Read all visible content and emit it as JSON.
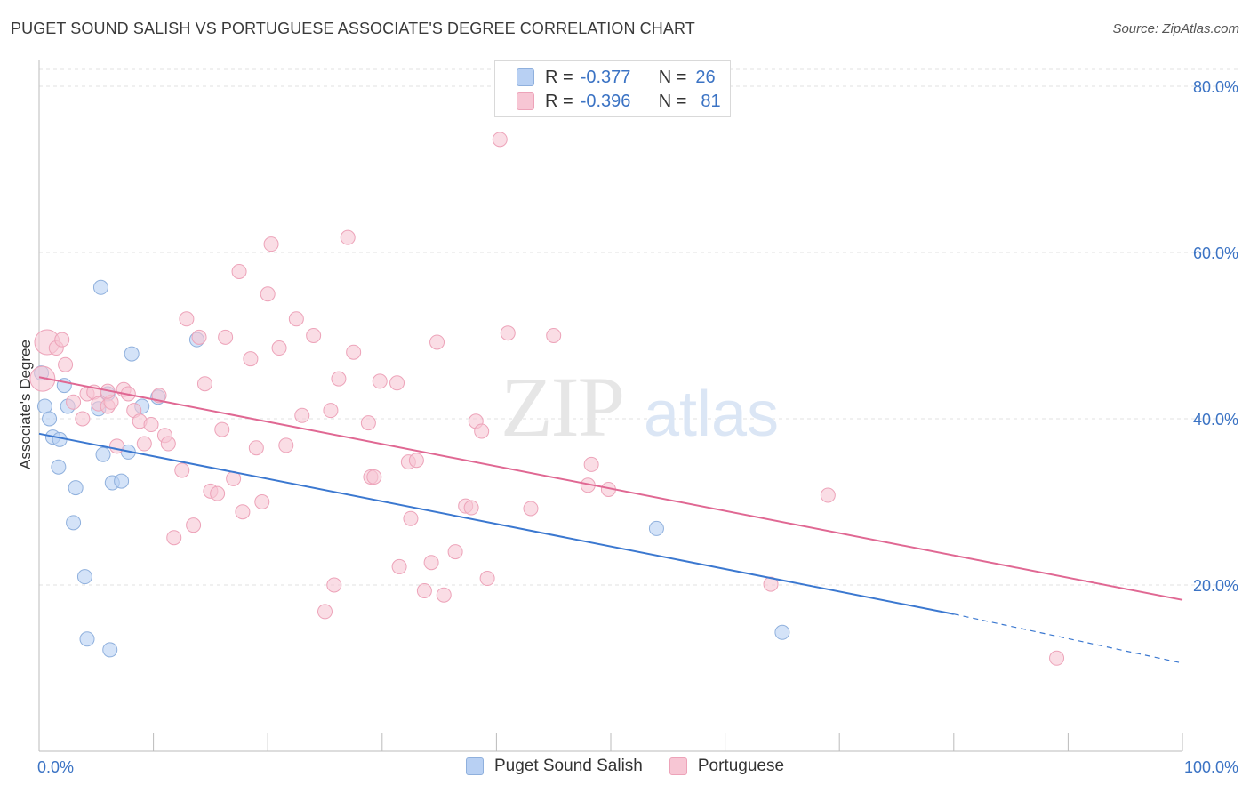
{
  "header": {
    "title": "PUGET SOUND SALISH VS PORTUGUESE ASSOCIATE'S DEGREE CORRELATION CHART",
    "source": "Source: ZipAtlas.com"
  },
  "legend_top": {
    "rows": [
      {
        "r_label": "R =",
        "r_value": "-0.377",
        "n_label": "N =",
        "n_value": "26"
      },
      {
        "r_label": "R =",
        "r_value": "-0.396",
        "n_label": "N =",
        "n_value": "81"
      }
    ]
  },
  "watermark": {
    "zip": "ZIP",
    "atlas": "atlas"
  },
  "colors": {
    "blue_fill": "#b8d0f3",
    "blue_stroke": "#8fb0dd",
    "blue_line": "#3b78d0",
    "pink_fill": "#f7c6d4",
    "pink_stroke": "#eda3b9",
    "pink_line": "#e06893",
    "tick_label": "#3b73c4",
    "grid": "#e2e2e2"
  },
  "chart_data": {
    "type": "scatter",
    "title": "PUGET SOUND SALISH VS PORTUGUESE ASSOCIATE'S DEGREE CORRELATION CHART",
    "xlabel": "",
    "ylabel": "Associate's Degree",
    "xlim": [
      0,
      100
    ],
    "ylim": [
      0,
      80
    ],
    "x_tick_labels": [
      "0.0%",
      "100.0%"
    ],
    "y_ticks": [
      20,
      40,
      60,
      80
    ],
    "y_tick_labels": [
      "20.0%",
      "40.0%",
      "60.0%",
      "80.0%"
    ],
    "grid": true,
    "legend_position": "bottom",
    "series": [
      {
        "name": "Puget Sound Salish",
        "color": "#b8d0f3",
        "points": [
          [
            0.2,
            45.5
          ],
          [
            0.5,
            41.5
          ],
          [
            0.9,
            40.0
          ],
          [
            1.2,
            37.8
          ],
          [
            1.8,
            37.5
          ],
          [
            1.7,
            34.2
          ],
          [
            2.2,
            44.0
          ],
          [
            2.5,
            41.5
          ],
          [
            3.0,
            27.5
          ],
          [
            3.2,
            31.7
          ],
          [
            4.0,
            21.0
          ],
          [
            4.2,
            13.5
          ],
          [
            5.2,
            41.2
          ],
          [
            5.4,
            55.8
          ],
          [
            5.6,
            35.7
          ],
          [
            6.0,
            43.0
          ],
          [
            6.2,
            12.2
          ],
          [
            6.4,
            32.3
          ],
          [
            7.2,
            32.5
          ],
          [
            7.8,
            36.0
          ],
          [
            8.1,
            47.8
          ],
          [
            9.0,
            41.5
          ],
          [
            10.4,
            42.6
          ],
          [
            13.8,
            49.5
          ],
          [
            54.0,
            26.8
          ],
          [
            65.0,
            14.3
          ]
        ],
        "trend": {
          "x0": 0,
          "y0": 38.2,
          "x1": 80,
          "y1": 16.5,
          "dash_to_x": 100,
          "dash_to_y": 10.6
        }
      },
      {
        "name": "Portuguese",
        "color": "#f7c6d4",
        "points": [
          [
            0.3,
            44.8
          ],
          [
            0.7,
            49.2
          ],
          [
            1.5,
            48.5
          ],
          [
            2.0,
            49.5
          ],
          [
            2.3,
            46.5
          ],
          [
            3.0,
            42.0
          ],
          [
            3.8,
            40.0
          ],
          [
            4.2,
            43.0
          ],
          [
            4.8,
            43.2
          ],
          [
            5.2,
            41.8
          ],
          [
            6.0,
            41.5
          ],
          [
            6.3,
            42.0
          ],
          [
            6.8,
            36.7
          ],
          [
            7.4,
            43.5
          ],
          [
            7.8,
            43.0
          ],
          [
            8.3,
            41.0
          ],
          [
            8.8,
            39.7
          ],
          [
            9.2,
            37.0
          ],
          [
            9.8,
            39.3
          ],
          [
            10.5,
            42.8
          ],
          [
            11.0,
            38.0
          ],
          [
            11.3,
            37.0
          ],
          [
            11.8,
            25.7
          ],
          [
            12.5,
            33.8
          ],
          [
            12.9,
            52.0
          ],
          [
            13.5,
            27.2
          ],
          [
            14.0,
            49.8
          ],
          [
            14.5,
            44.2
          ],
          [
            15.0,
            31.3
          ],
          [
            15.6,
            31.0
          ],
          [
            16.0,
            38.7
          ],
          [
            16.3,
            49.8
          ],
          [
            17.0,
            32.8
          ],
          [
            17.5,
            57.7
          ],
          [
            17.8,
            28.8
          ],
          [
            18.5,
            47.2
          ],
          [
            19.0,
            36.5
          ],
          [
            19.5,
            30.0
          ],
          [
            20.0,
            55.0
          ],
          [
            20.3,
            61.0
          ],
          [
            21.0,
            48.5
          ],
          [
            21.6,
            36.8
          ],
          [
            22.5,
            52.0
          ],
          [
            23.0,
            40.4
          ],
          [
            24.0,
            50.0
          ],
          [
            25.0,
            16.8
          ],
          [
            25.5,
            41.0
          ],
          [
            25.8,
            20.0
          ],
          [
            26.2,
            44.8
          ],
          [
            27.0,
            61.8
          ],
          [
            27.5,
            48.0
          ],
          [
            28.8,
            39.5
          ],
          [
            29.0,
            33.0
          ],
          [
            29.3,
            33.0
          ],
          [
            29.8,
            44.5
          ],
          [
            31.3,
            44.3
          ],
          [
            31.5,
            22.2
          ],
          [
            32.3,
            34.8
          ],
          [
            32.5,
            28.0
          ],
          [
            33.0,
            35.0
          ],
          [
            33.7,
            19.3
          ],
          [
            34.3,
            22.7
          ],
          [
            34.8,
            49.2
          ],
          [
            35.4,
            18.8
          ],
          [
            36.4,
            24.0
          ],
          [
            37.3,
            29.5
          ],
          [
            37.8,
            29.3
          ],
          [
            38.2,
            39.7
          ],
          [
            38.7,
            38.5
          ],
          [
            39.2,
            20.8
          ],
          [
            40.3,
            73.6
          ],
          [
            41.0,
            50.3
          ],
          [
            43.0,
            29.2
          ],
          [
            45.0,
            50.0
          ],
          [
            48.0,
            32.0
          ],
          [
            48.3,
            34.5
          ],
          [
            49.8,
            31.5
          ],
          [
            64.0,
            20.1
          ],
          [
            69.0,
            30.8
          ],
          [
            89.0,
            11.2
          ],
          [
            6.0,
            43.3
          ]
        ],
        "trend": {
          "x0": 0,
          "y0": 45.0,
          "x1": 100,
          "y1": 18.2
        }
      }
    ]
  },
  "bottom_legend": [
    {
      "label": "Puget Sound Salish"
    },
    {
      "label": "Portuguese"
    }
  ]
}
